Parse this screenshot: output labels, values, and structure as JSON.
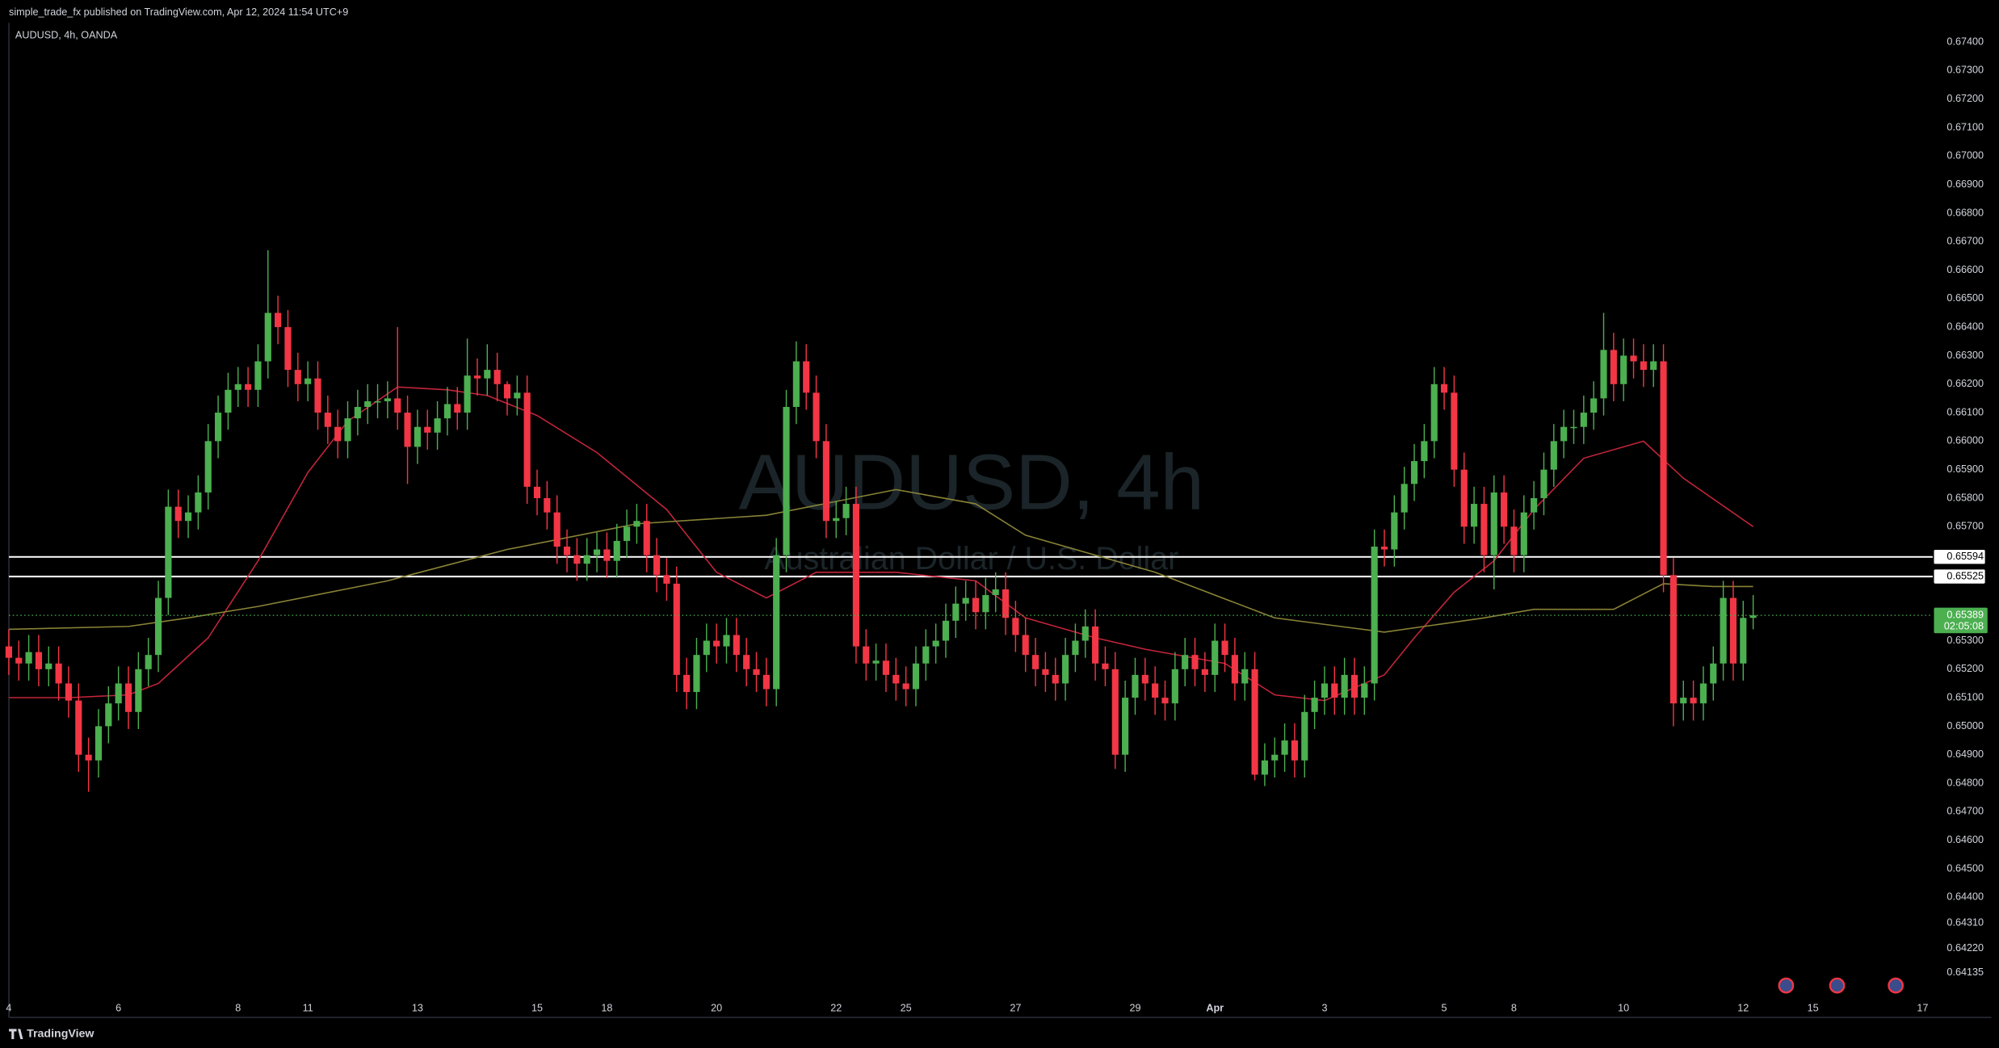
{
  "header": {
    "publisher": "simple_trade_fx published on TradingView.com, Apr 12, 2024 11:54 UTC+9"
  },
  "footer": {
    "brand": "TradingView"
  },
  "chart_data": {
    "type": "candlestick",
    "title": "AUDUSD, 4h, OANDA",
    "watermark": {
      "title": "AUDUSD, 4h",
      "subtitle": "Australian Dollar / U.S. Dollar"
    },
    "up_color": "#4caf50",
    "down_color": "#f23645",
    "grid": false,
    "ylim": [
      0.64059,
      0.67467
    ],
    "yticks": [
      {
        "value": 0.674,
        "label": "0.67400"
      },
      {
        "value": 0.673,
        "label": "0.67300"
      },
      {
        "value": 0.672,
        "label": "0.67200"
      },
      {
        "value": 0.671,
        "label": "0.67100"
      },
      {
        "value": 0.67,
        "label": "0.67000"
      },
      {
        "value": 0.669,
        "label": "0.66900"
      },
      {
        "value": 0.668,
        "label": "0.66800"
      },
      {
        "value": 0.667,
        "label": "0.66700"
      },
      {
        "value": 0.666,
        "label": "0.66600"
      },
      {
        "value": 0.665,
        "label": "0.66500"
      },
      {
        "value": 0.664,
        "label": "0.66400"
      },
      {
        "value": 0.663,
        "label": "0.66300"
      },
      {
        "value": 0.662,
        "label": "0.66200"
      },
      {
        "value": 0.661,
        "label": "0.66100"
      },
      {
        "value": 0.66,
        "label": "0.66000"
      },
      {
        "value": 0.659,
        "label": "0.65900"
      },
      {
        "value": 0.658,
        "label": "0.65800"
      },
      {
        "value": 0.657,
        "label": "0.65700"
      },
      {
        "value": 0.653,
        "label": "0.65300"
      },
      {
        "value": 0.652,
        "label": "0.65200"
      },
      {
        "value": 0.651,
        "label": "0.65100"
      },
      {
        "value": 0.65,
        "label": "0.65000"
      },
      {
        "value": 0.649,
        "label": "0.64900"
      },
      {
        "value": 0.648,
        "label": "0.64800"
      },
      {
        "value": 0.647,
        "label": "0.64700"
      },
      {
        "value": 0.646,
        "label": "0.64600"
      },
      {
        "value": 0.645,
        "label": "0.64500"
      },
      {
        "value": 0.644,
        "label": "0.64400"
      },
      {
        "value": 0.6431,
        "label": "0.64310"
      },
      {
        "value": 0.6422,
        "label": "0.64220"
      },
      {
        "value": 0.64135,
        "label": "0.64135"
      }
    ],
    "categories": [
      "4",
      null,
      null,
      null,
      null,
      null,
      null,
      null,
      null,
      null,
      null,
      "6",
      null,
      null,
      null,
      null,
      null,
      null,
      null,
      null,
      null,
      null,
      null,
      "8",
      null,
      null,
      null,
      null,
      null,
      null,
      "11",
      null,
      null,
      null,
      null,
      null,
      null,
      null,
      null,
      null,
      null,
      "13",
      null,
      null,
      null,
      null,
      null,
      null,
      null,
      null,
      null,
      null,
      null,
      "15",
      null,
      null,
      null,
      null,
      null,
      null,
      "18",
      null,
      null,
      null,
      null,
      null,
      null,
      null,
      null,
      null,
      null,
      "20",
      null,
      null,
      null,
      null,
      null,
      null,
      null,
      null,
      null,
      null,
      null,
      "22",
      null,
      null,
      null,
      null,
      null,
      null,
      "25",
      null,
      null,
      null,
      null,
      null,
      null,
      null,
      null,
      null,
      null,
      "27",
      null,
      null,
      null,
      null,
      null,
      null,
      null,
      null,
      null,
      null,
      null,
      "29",
      null,
      null,
      null,
      null,
      null,
      null,
      null,
      "Apr",
      null,
      null,
      null,
      null,
      null,
      null,
      null,
      null,
      null,
      null,
      "3",
      null,
      null,
      null,
      null,
      null,
      null,
      null,
      null,
      null,
      null,
      null,
      "5",
      null,
      null,
      null,
      null,
      null,
      null,
      "8",
      null,
      null,
      null,
      null,
      null,
      null,
      null,
      null,
      null,
      null,
      "10",
      null,
      null,
      null,
      null,
      null,
      null,
      null,
      null,
      null,
      null,
      null,
      "12",
      null,
      null,
      null,
      null,
      null,
      null,
      "15",
      null,
      null,
      null,
      null,
      null,
      null,
      null,
      null,
      null,
      null,
      "17"
    ],
    "open": [
      0.6528,
      0.6524,
      0.6522,
      0.6526,
      0.652,
      0.6522,
      0.6515,
      0.6509,
      0.649,
      0.6488,
      0.65,
      0.6508,
      0.6515,
      0.6505,
      0.652,
      0.6525,
      0.6545,
      0.6577,
      0.6572,
      0.6575,
      0.6582,
      0.66,
      0.661,
      0.6618,
      0.662,
      0.6618,
      0.6628,
      0.6645,
      0.664,
      0.6625,
      0.662,
      0.6622,
      0.661,
      0.6605,
      0.66,
      0.6608,
      0.6612,
      0.6614,
      0.6614,
      0.6615,
      0.661,
      0.6598,
      0.6605,
      0.6603,
      0.6608,
      0.6613,
      0.661,
      0.6623,
      0.6622,
      0.6625,
      0.662,
      0.6615,
      0.6617,
      0.6584,
      0.658,
      0.6575,
      0.6563,
      0.656,
      0.6557,
      0.656,
      0.6562,
      0.6558,
      0.6565,
      0.657,
      0.6572,
      0.656,
      0.6553,
      0.655,
      0.6518,
      0.6512,
      0.6525,
      0.653,
      0.6528,
      0.6532,
      0.6525,
      0.652,
      0.6518,
      0.6513,
      0.656,
      0.6612,
      0.6628,
      0.6617,
      0.66,
      0.6572,
      0.6573,
      0.6578,
      0.6528,
      0.6522,
      0.6523,
      0.6518,
      0.6515,
      0.6513,
      0.6522,
      0.6528,
      0.653,
      0.6537,
      0.6543,
      0.6545,
      0.654,
      0.6546,
      0.6548,
      0.6538,
      0.6532,
      0.6525,
      0.652,
      0.6518,
      0.6515,
      0.6525,
      0.653,
      0.6535,
      0.6522,
      0.652,
      0.649,
      0.651,
      0.6518,
      0.6515,
      0.651,
      0.6508,
      0.652,
      0.6525,
      0.652,
      0.6518,
      0.653,
      0.6525,
      0.6515,
      0.652,
      0.6483,
      0.6488,
      0.649,
      0.6495,
      0.6488,
      0.6505,
      0.651,
      0.6515,
      0.651,
      0.6518,
      0.651,
      0.6515,
      0.6563,
      0.6562,
      0.6575,
      0.6585,
      0.6593,
      0.66,
      0.662,
      0.6617,
      0.659,
      0.657,
      0.6578,
      0.656,
      0.6582,
      0.657,
      0.656,
      0.6575,
      0.658,
      0.659,
      0.66,
      0.6605,
      0.6605,
      0.661,
      0.6615,
      0.6632,
      0.662,
      0.663,
      0.6628,
      0.6625,
      0.6628,
      0.6553,
      0.6508,
      0.651,
      0.6508,
      0.6515,
      0.6522,
      0.6545,
      0.6522,
      0.6538,
      null,
      null,
      null,
      null,
      null,
      null,
      null,
      null,
      null,
      null,
      null,
      null,
      null,
      null,
      null,
      null,
      null
    ],
    "high": [
      0.6534,
      0.653,
      0.6532,
      0.6532,
      0.6528,
      0.6528,
      0.6521,
      0.6515,
      0.6496,
      0.6506,
      0.6514,
      0.6521,
      0.6521,
      0.6526,
      0.6531,
      0.6551,
      0.6583,
      0.6583,
      0.6581,
      0.6588,
      0.6606,
      0.6616,
      0.6624,
      0.6626,
      0.6626,
      0.6634,
      0.6667,
      0.6651,
      0.6646,
      0.6631,
      0.6628,
      0.6628,
      0.6616,
      0.6611,
      0.6614,
      0.6618,
      0.662,
      0.662,
      0.6621,
      0.664,
      0.6616,
      0.6611,
      0.6611,
      0.6614,
      0.6619,
      0.6619,
      0.6636,
      0.6629,
      0.6634,
      0.6631,
      0.6621,
      0.6623,
      0.6623,
      0.659,
      0.6586,
      0.6581,
      0.6569,
      0.6566,
      0.6566,
      0.6568,
      0.6568,
      0.6571,
      0.6576,
      0.6578,
      0.6578,
      0.6566,
      0.6559,
      0.6556,
      0.6524,
      0.6531,
      0.6536,
      0.6536,
      0.6538,
      0.6538,
      0.6531,
      0.6526,
      0.6524,
      0.6566,
      0.6618,
      0.6635,
      0.6634,
      0.6623,
      0.6606,
      0.6579,
      0.6584,
      0.6584,
      0.6534,
      0.6529,
      0.6529,
      0.6524,
      0.6521,
      0.6528,
      0.6534,
      0.6536,
      0.6543,
      0.6549,
      0.6551,
      0.6551,
      0.6552,
      0.6554,
      0.6554,
      0.6544,
      0.6538,
      0.6531,
      0.6526,
      0.6524,
      0.6531,
      0.6536,
      0.6541,
      0.6541,
      0.6528,
      0.6526,
      0.6516,
      0.6524,
      0.6524,
      0.6521,
      0.6516,
      0.6526,
      0.6531,
      0.6531,
      0.6526,
      0.6536,
      0.6536,
      0.6531,
      0.6526,
      0.6526,
      0.6494,
      0.6496,
      0.6501,
      0.6501,
      0.6511,
      0.6516,
      0.6521,
      0.6521,
      0.6524,
      0.6524,
      0.6521,
      0.6569,
      0.6569,
      0.6581,
      0.6591,
      0.6599,
      0.6606,
      0.6626,
      0.6626,
      0.6623,
      0.6596,
      0.6584,
      0.6584,
      0.6588,
      0.6588,
      0.6576,
      0.6581,
      0.6586,
      0.6596,
      0.6606,
      0.6611,
      0.6611,
      0.6616,
      0.6621,
      0.6645,
      0.6638,
      0.6636,
      0.6636,
      0.6634,
      0.6634,
      0.6634,
      0.6559,
      0.6516,
      0.6516,
      0.6521,
      0.6528,
      0.6551,
      0.6551,
      0.6544,
      0.6546,
      null,
      null,
      null,
      null,
      null,
      null,
      null,
      null,
      null,
      null,
      null,
      null,
      null,
      null,
      null,
      null,
      null
    ],
    "low": [
      0.6518,
      0.6516,
      0.6516,
      0.6514,
      0.6514,
      0.6509,
      0.6503,
      0.6484,
      0.6477,
      0.6482,
      0.6494,
      0.6502,
      0.6499,
      0.6499,
      0.6514,
      0.6519,
      0.6539,
      0.6566,
      0.6566,
      0.6569,
      0.6576,
      0.6594,
      0.6604,
      0.6612,
      0.6612,
      0.6612,
      0.6622,
      0.6634,
      0.6619,
      0.6614,
      0.6614,
      0.6604,
      0.6599,
      0.6594,
      0.6594,
      0.6602,
      0.6606,
      0.6608,
      0.6608,
      0.6604,
      0.6585,
      0.6592,
      0.6597,
      0.6597,
      0.6602,
      0.6604,
      0.6604,
      0.6616,
      0.6616,
      0.6614,
      0.6609,
      0.6609,
      0.6578,
      0.6574,
      0.6569,
      0.6557,
      0.6554,
      0.6551,
      0.6551,
      0.6554,
      0.6552,
      0.6552,
      0.6559,
      0.6564,
      0.6554,
      0.6547,
      0.6544,
      0.6512,
      0.6506,
      0.6506,
      0.6519,
      0.6522,
      0.6522,
      0.6519,
      0.6514,
      0.6512,
      0.6507,
      0.6507,
      0.6554,
      0.6606,
      0.6611,
      0.6594,
      0.6566,
      0.6566,
      0.6567,
      0.6522,
      0.6516,
      0.6516,
      0.6512,
      0.6509,
      0.6507,
      0.6507,
      0.6516,
      0.6522,
      0.6524,
      0.6531,
      0.6537,
      0.6534,
      0.6534,
      0.654,
      0.6532,
      0.6526,
      0.6519,
      0.6514,
      0.6512,
      0.6509,
      0.6509,
      0.6519,
      0.6524,
      0.6516,
      0.6514,
      0.6485,
      0.6484,
      0.6504,
      0.6509,
      0.6504,
      0.6502,
      0.6502,
      0.6514,
      0.6514,
      0.6512,
      0.6512,
      0.6519,
      0.6509,
      0.6509,
      0.6481,
      0.6479,
      0.6482,
      0.6484,
      0.6482,
      0.6482,
      0.6499,
      0.6504,
      0.6504,
      0.6504,
      0.6504,
      0.6504,
      0.6509,
      0.6556,
      0.6556,
      0.6569,
      0.6579,
      0.6587,
      0.6594,
      0.6611,
      0.6584,
      0.6564,
      0.6564,
      0.6554,
      0.6548,
      0.6564,
      0.6554,
      0.6554,
      0.6569,
      0.6574,
      0.6584,
      0.6594,
      0.6599,
      0.6599,
      0.6604,
      0.6609,
      0.6614,
      0.6614,
      0.6622,
      0.6619,
      0.6619,
      0.6547,
      0.65,
      0.6502,
      0.6502,
      0.6502,
      0.6509,
      0.6516,
      0.6516,
      0.6516,
      0.6534,
      null,
      null,
      null,
      null,
      null,
      null,
      null,
      null,
      null,
      null,
      null,
      null,
      null,
      null,
      null,
      null,
      null
    ],
    "close": [
      0.6524,
      0.6522,
      0.6526,
      0.652,
      0.6522,
      0.6515,
      0.6509,
      0.649,
      0.6488,
      0.65,
      0.6508,
      0.6515,
      0.6505,
      0.652,
      0.6525,
      0.6545,
      0.6577,
      0.6572,
      0.6575,
      0.6582,
      0.66,
      0.661,
      0.6618,
      0.662,
      0.6618,
      0.6628,
      0.6645,
      0.664,
      0.6625,
      0.662,
      0.6622,
      0.661,
      0.6605,
      0.66,
      0.6608,
      0.6612,
      0.6614,
      0.6614,
      0.6615,
      0.661,
      0.6598,
      0.6605,
      0.6603,
      0.6608,
      0.6613,
      0.661,
      0.6623,
      0.6622,
      0.6625,
      0.662,
      0.6615,
      0.6617,
      0.6584,
      0.658,
      0.6575,
      0.6563,
      0.656,
      0.6557,
      0.656,
      0.6562,
      0.6558,
      0.6565,
      0.657,
      0.6572,
      0.656,
      0.6553,
      0.655,
      0.6518,
      0.6512,
      0.6525,
      0.653,
      0.6528,
      0.6532,
      0.6525,
      0.652,
      0.6518,
      0.6513,
      0.656,
      0.6612,
      0.6628,
      0.6617,
      0.66,
      0.6572,
      0.6573,
      0.6578,
      0.6528,
      0.6522,
      0.6523,
      0.6518,
      0.6515,
      0.6513,
      0.6522,
      0.6528,
      0.653,
      0.6537,
      0.6543,
      0.6545,
      0.654,
      0.6546,
      0.6548,
      0.6538,
      0.6532,
      0.6525,
      0.652,
      0.6518,
      0.6515,
      0.6525,
      0.653,
      0.6535,
      0.6522,
      0.652,
      0.649,
      0.651,
      0.6518,
      0.6515,
      0.651,
      0.6508,
      0.652,
      0.6525,
      0.652,
      0.6518,
      0.653,
      0.6525,
      0.6515,
      0.652,
      0.6483,
      0.6488,
      0.649,
      0.6495,
      0.6488,
      0.6505,
      0.651,
      0.6515,
      0.651,
      0.6518,
      0.651,
      0.6515,
      0.6563,
      0.6562,
      0.6575,
      0.6585,
      0.6593,
      0.66,
      0.662,
      0.6617,
      0.659,
      0.657,
      0.6578,
      0.656,
      0.6582,
      0.657,
      0.656,
      0.6575,
      0.658,
      0.659,
      0.66,
      0.6605,
      0.6605,
      0.661,
      0.6615,
      0.6632,
      0.662,
      0.663,
      0.6628,
      0.6625,
      0.6628,
      0.6553,
      0.6508,
      0.651,
      0.6508,
      0.6515,
      0.6522,
      0.6545,
      0.6522,
      0.6538,
      0.65389,
      null,
      null,
      null,
      null,
      null,
      null,
      null,
      null,
      null,
      null,
      null,
      null,
      null,
      null,
      null,
      null,
      null
    ],
    "moving_averages": [
      {
        "color": "#c2253a",
        "x": [
          0,
          6,
          12,
          15,
          20,
          25,
          30,
          34,
          39,
          44,
          48,
          53,
          59,
          66,
          71,
          76,
          81,
          89,
          97,
          102,
          109,
          114,
          122,
          127,
          132,
          138,
          141,
          145,
          149,
          153,
          158,
          164,
          168,
          175
        ],
        "values": [
          0.651,
          0.651,
          0.6511,
          0.6515,
          0.6531,
          0.6558,
          0.6589,
          0.6607,
          0.6619,
          0.6618,
          0.6616,
          0.6609,
          0.6596,
          0.6576,
          0.6554,
          0.6545,
          0.6554,
          0.6554,
          0.6551,
          0.6538,
          0.6531,
          0.6527,
          0.6522,
          0.6511,
          0.6509,
          0.6518,
          0.6531,
          0.6547,
          0.6558,
          0.6576,
          0.6594,
          0.66,
          0.6587,
          0.657
        ]
      },
      {
        "color": "#8a8437",
        "x": [
          0,
          12,
          18,
          25,
          38,
          50,
          63,
          76,
          89,
          97,
          102,
          115,
          127,
          138,
          148,
          153,
          161,
          166,
          171,
          175
        ],
        "values": [
          0.6534,
          0.6535,
          0.6538,
          0.6542,
          0.6551,
          0.6562,
          0.6571,
          0.6574,
          0.6583,
          0.6578,
          0.6567,
          0.6554,
          0.6538,
          0.6533,
          0.6538,
          0.6541,
          0.6541,
          0.655,
          0.6549,
          0.6549
        ]
      }
    ],
    "levels": [
      0.65594,
      0.65525
    ],
    "level_color": "#ffffff",
    "last_price": 0.65389,
    "countdown": "02:05:08"
  }
}
